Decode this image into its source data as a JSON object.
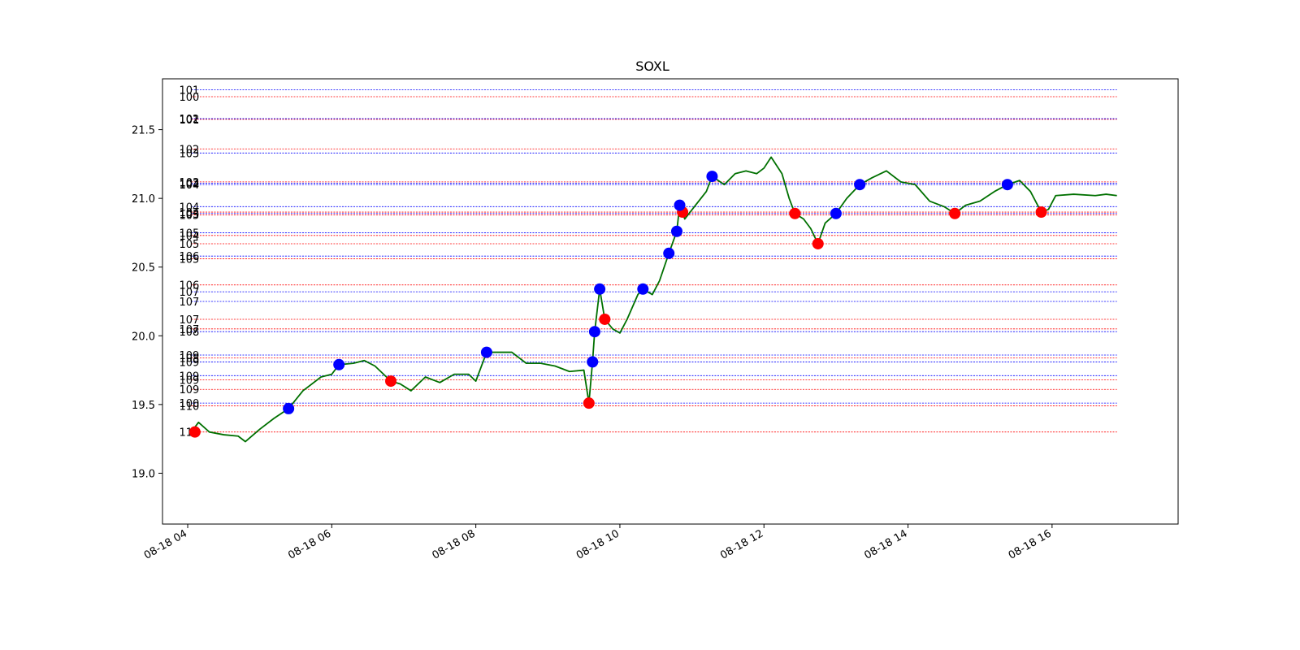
{
  "chart_data": {
    "type": "line",
    "title": "SOXL",
    "xlabel": "",
    "ylabel": "",
    "x_tick_labels": [
      "08-18 04",
      "08-18 06",
      "08-18 08",
      "08-18 10",
      "08-18 12",
      "08-18 14",
      "08-18 16"
    ],
    "x_tick_hours": [
      4,
      6,
      8,
      10,
      12,
      14,
      16
    ],
    "xlim_hours": [
      3.65,
      17.75
    ],
    "y_ticks": [
      19.0,
      19.5,
      20.0,
      20.5,
      21.0,
      21.5
    ],
    "y_tick_labels": [
      "19.0",
      "19.5",
      "20.0",
      "20.5",
      "21.0",
      "21.5"
    ],
    "ylim": [
      18.63,
      21.87
    ],
    "grid": false,
    "colors": {
      "price": "#007000",
      "buy": "#0000ff",
      "sell": "#ff0000"
    },
    "series": [
      {
        "name": "",
        "color": "#007000",
        "points": [
          [
            4.05,
            19.3
          ],
          [
            4.15,
            19.37
          ],
          [
            4.3,
            19.3
          ],
          [
            4.5,
            19.28
          ],
          [
            4.7,
            19.27
          ],
          [
            4.8,
            19.23
          ],
          [
            5.0,
            19.32
          ],
          [
            5.2,
            19.4
          ],
          [
            5.4,
            19.47
          ],
          [
            5.6,
            19.6
          ],
          [
            5.85,
            19.7
          ],
          [
            6.0,
            19.72
          ],
          [
            6.1,
            19.79
          ],
          [
            6.3,
            19.8
          ],
          [
            6.45,
            19.82
          ],
          [
            6.6,
            19.78
          ],
          [
            6.82,
            19.67
          ],
          [
            6.95,
            19.65
          ],
          [
            7.1,
            19.6
          ],
          [
            7.3,
            19.7
          ],
          [
            7.5,
            19.66
          ],
          [
            7.7,
            19.72
          ],
          [
            7.9,
            19.72
          ],
          [
            8.0,
            19.67
          ],
          [
            8.15,
            19.88
          ],
          [
            8.3,
            19.88
          ],
          [
            8.5,
            19.88
          ],
          [
            8.7,
            19.8
          ],
          [
            8.9,
            19.8
          ],
          [
            9.1,
            19.78
          ],
          [
            9.3,
            19.74
          ],
          [
            9.5,
            19.75
          ],
          [
            9.57,
            19.51
          ],
          [
            9.62,
            19.81
          ],
          [
            9.65,
            20.03
          ],
          [
            9.72,
            20.34
          ],
          [
            9.79,
            20.12
          ],
          [
            9.9,
            20.05
          ],
          [
            10.0,
            20.02
          ],
          [
            10.1,
            20.12
          ],
          [
            10.25,
            20.3
          ],
          [
            10.32,
            20.34
          ],
          [
            10.45,
            20.3
          ],
          [
            10.55,
            20.4
          ],
          [
            10.68,
            20.6
          ],
          [
            10.79,
            20.76
          ],
          [
            10.83,
            20.95
          ],
          [
            10.87,
            20.9
          ],
          [
            10.9,
            20.85
          ],
          [
            11.05,
            20.95
          ],
          [
            11.2,
            21.05
          ],
          [
            11.28,
            21.16
          ],
          [
            11.45,
            21.1
          ],
          [
            11.6,
            21.18
          ],
          [
            11.75,
            21.2
          ],
          [
            11.9,
            21.18
          ],
          [
            12.0,
            21.22
          ],
          [
            12.1,
            21.3
          ],
          [
            12.25,
            21.18
          ],
          [
            12.35,
            21.0
          ],
          [
            12.43,
            20.89
          ],
          [
            12.55,
            20.85
          ],
          [
            12.65,
            20.78
          ],
          [
            12.75,
            20.67
          ],
          [
            12.85,
            20.82
          ],
          [
            13.0,
            20.89
          ],
          [
            13.15,
            21.0
          ],
          [
            13.33,
            21.1
          ],
          [
            13.5,
            21.15
          ],
          [
            13.7,
            21.2
          ],
          [
            13.9,
            21.12
          ],
          [
            14.1,
            21.1
          ],
          [
            14.3,
            20.98
          ],
          [
            14.5,
            20.94
          ],
          [
            14.65,
            20.89
          ],
          [
            14.8,
            20.95
          ],
          [
            15.0,
            20.98
          ],
          [
            15.2,
            21.05
          ],
          [
            15.38,
            21.1
          ],
          [
            15.55,
            21.13
          ],
          [
            15.7,
            21.05
          ],
          [
            15.85,
            20.9
          ],
          [
            15.95,
            20.92
          ],
          [
            16.05,
            21.02
          ],
          [
            16.3,
            21.03
          ],
          [
            16.6,
            21.02
          ],
          [
            16.75,
            21.03
          ],
          [
            16.9,
            21.02
          ]
        ]
      }
    ],
    "buy_markers": [
      [
        5.4,
        19.47
      ],
      [
        6.1,
        19.79
      ],
      [
        8.15,
        19.88
      ],
      [
        9.62,
        19.81
      ],
      [
        9.65,
        20.03
      ],
      [
        9.72,
        20.34
      ],
      [
        10.32,
        20.34
      ],
      [
        10.68,
        20.6
      ],
      [
        10.79,
        20.76
      ],
      [
        10.83,
        20.95
      ],
      [
        11.28,
        21.16
      ],
      [
        13.0,
        20.89
      ],
      [
        13.33,
        21.1
      ],
      [
        15.38,
        21.1
      ]
    ],
    "sell_markers": [
      [
        4.1,
        19.3
      ],
      [
        6.82,
        19.67
      ],
      [
        9.57,
        19.51
      ],
      [
        9.79,
        20.12
      ],
      [
        10.87,
        20.9
      ],
      [
        12.43,
        20.89
      ],
      [
        12.75,
        20.67
      ],
      [
        14.65,
        20.89
      ],
      [
        15.85,
        20.9
      ]
    ],
    "level_lines": [
      {
        "label": "101",
        "y": 21.79,
        "color": "#0000ff"
      },
      {
        "label": "100",
        "y": 21.74,
        "color": "#ff0000"
      },
      {
        "label": "102",
        "y": 21.58,
        "color": "#0000ff"
      },
      {
        "label": "101",
        "y": 21.575,
        "color": "#ff0000"
      },
      {
        "label": "102",
        "y": 21.36,
        "color": "#ff0000"
      },
      {
        "label": "103",
        "y": 21.33,
        "color": "#0000ff"
      },
      {
        "label": "103",
        "y": 21.12,
        "color": "#ff0000"
      },
      {
        "label": "102",
        "y": 21.11,
        "color": "#0000ff"
      },
      {
        "label": "104",
        "y": 21.1,
        "color": "#0000ff"
      },
      {
        "label": "104",
        "y": 20.94,
        "color": "#0000ff"
      },
      {
        "label": "104",
        "y": 20.9,
        "color": "#ff0000"
      },
      {
        "label": "103",
        "y": 20.89,
        "color": "#0000ff"
      },
      {
        "label": "105",
        "y": 20.88,
        "color": "#ff0000"
      },
      {
        "label": "105",
        "y": 20.75,
        "color": "#0000ff"
      },
      {
        "label": "104",
        "y": 20.73,
        "color": "#ff0000"
      },
      {
        "label": "105",
        "y": 20.67,
        "color": "#ff0000"
      },
      {
        "label": "106",
        "y": 20.58,
        "color": "#0000ff"
      },
      {
        "label": "105",
        "y": 20.56,
        "color": "#ff0000"
      },
      {
        "label": "106",
        "y": 20.37,
        "color": "#ff0000"
      },
      {
        "label": "107",
        "y": 20.32,
        "color": "#0000ff"
      },
      {
        "label": "107",
        "y": 20.25,
        "color": "#0000ff"
      },
      {
        "label": "107",
        "y": 20.12,
        "color": "#ff0000"
      },
      {
        "label": "107",
        "y": 20.05,
        "color": "#ff0000"
      },
      {
        "label": "108",
        "y": 20.03,
        "color": "#0000ff"
      },
      {
        "label": "109",
        "y": 19.86,
        "color": "#0000ff"
      },
      {
        "label": "108",
        "y": 19.84,
        "color": "#ff0000"
      },
      {
        "label": "109",
        "y": 19.81,
        "color": "#0000ff"
      },
      {
        "label": "109",
        "y": 19.71,
        "color": "#0000ff"
      },
      {
        "label": "109",
        "y": 19.68,
        "color": "#ff0000"
      },
      {
        "label": "109",
        "y": 19.61,
        "color": "#ff0000"
      },
      {
        "label": "100",
        "y": 19.51,
        "color": "#0000ff"
      },
      {
        "label": "110",
        "y": 19.49,
        "color": "#ff0000"
      },
      {
        "label": "110",
        "y": 19.3,
        "color": "#ff0000"
      }
    ]
  }
}
